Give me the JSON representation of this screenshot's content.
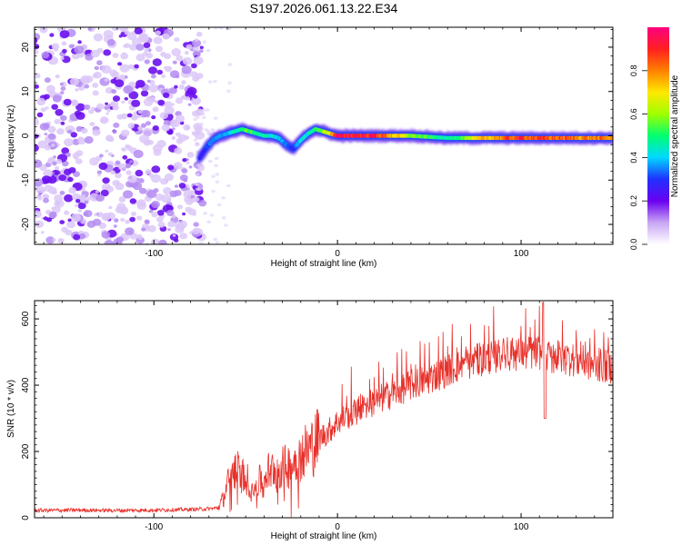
{
  "figure": {
    "title": "S197.2026.061.13.22.E34"
  },
  "chart_data": [
    {
      "type": "heatmap",
      "name": "spectrogram",
      "xlabel": "Height of straight line (km)",
      "ylabel": "Frequency (Hz)",
      "xlim": [
        -165,
        150
      ],
      "ylim": [
        -24.5,
        24.5
      ],
      "xticks": [
        -100,
        0,
        100
      ],
      "xtick_labels": [
        "-100",
        "0",
        "100"
      ],
      "yticks": [
        -20,
        -10,
        0,
        10,
        20
      ],
      "ytick_labels": [
        "-20",
        "-10",
        "0",
        "10",
        "20"
      ],
      "noise_region_x": [
        -165,
        -75
      ],
      "signal_track": {
        "x": [
          -75,
          -72,
          -68,
          -64,
          -60,
          -56,
          -52,
          -48,
          -44,
          -40,
          -36,
          -32,
          -28,
          -24,
          -22,
          -20,
          -16,
          -12,
          -8,
          -4,
          0,
          20,
          40,
          60,
          80,
          100,
          120,
          150
        ],
        "freq": [
          -5,
          -3,
          -1,
          0,
          0.5,
          1,
          1.5,
          1,
          0.5,
          0,
          0,
          -0.5,
          -2,
          -3,
          -2,
          -1,
          0.5,
          1.5,
          1,
          0.5,
          0,
          0,
          0,
          -0.5,
          -0.5,
          -0.5,
          -0.5,
          -0.5
        ],
        "amplitude": [
          0.25,
          0.3,
          0.35,
          0.35,
          0.4,
          0.45,
          0.5,
          0.55,
          0.5,
          0.45,
          0.45,
          0.4,
          0.35,
          0.3,
          0.35,
          0.4,
          0.45,
          0.5,
          0.6,
          0.7,
          0.95,
          0.95,
          0.6,
          0.45,
          0.75,
          0.9,
          0.85,
          0.8
        ]
      },
      "colorbar": {
        "label": "Normalized spectral amplitude",
        "ticks": [
          0.0,
          0.2,
          0.4,
          0.6,
          0.8
        ],
        "tick_labels": [
          "0.0",
          "0.2",
          "0.4",
          "0.6",
          "0.8"
        ],
        "colors": [
          "#ffffff",
          "#c9a6f5",
          "#6a00f0",
          "#2030ff",
          "#00d8ff",
          "#00ff70",
          "#a0ff00",
          "#ffe800",
          "#ff8000",
          "#ff2020",
          "#ff0080"
        ]
      }
    },
    {
      "type": "line",
      "name": "snr",
      "xlabel": "Height of straight line (km)",
      "ylabel": "SNR (10 * v/v)",
      "xlim": [
        -165,
        150
      ],
      "ylim": [
        0,
        655
      ],
      "xticks": [
        -100,
        0,
        100
      ],
      "xtick_labels": [
        "-100",
        "0",
        "100"
      ],
      "yticks": [
        0,
        200,
        400,
        600
      ],
      "ytick_labels": [
        "0",
        "200",
        "400",
        "600"
      ],
      "color": "#e8302a",
      "series": [
        {
          "name": "SNR",
          "x": [
            -165,
            -140,
            -120,
            -100,
            -80,
            -70,
            -65,
            -62,
            -60,
            -56,
            -50,
            -45,
            -40,
            -35,
            -30,
            -25,
            -20,
            -15,
            -10,
            -5,
            0,
            10,
            20,
            30,
            40,
            50,
            60,
            70,
            80,
            90,
            100,
            110,
            113,
            120,
            130,
            140,
            150
          ],
          "values": [
            22,
            23,
            22,
            23,
            25,
            27,
            30,
            60,
            100,
            150,
            120,
            90,
            130,
            150,
            150,
            160,
            190,
            210,
            240,
            260,
            290,
            320,
            350,
            375,
            400,
            420,
            445,
            465,
            480,
            490,
            495,
            500,
            480,
            485,
            475,
            460,
            455
          ]
        }
      ]
    }
  ]
}
